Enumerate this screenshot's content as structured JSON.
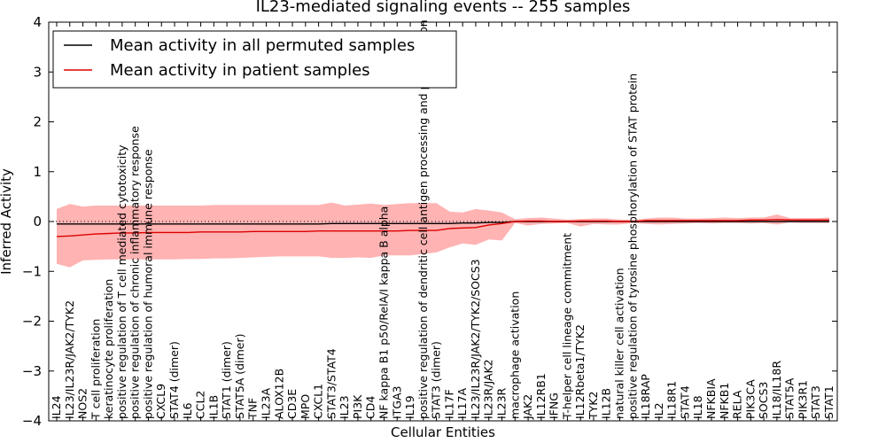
{
  "chart_data": {
    "type": "line",
    "title": "IL23-mediated signaling events -- 255 samples",
    "xlabel": "Cellular Entities",
    "ylabel": "Inferred Activity",
    "ylim": [
      -4,
      4
    ],
    "yticks": [
      -4,
      -3,
      -2,
      -1,
      0,
      1,
      2,
      3,
      4
    ],
    "grid": false,
    "legend_position": "top-left",
    "colors": {
      "permuted_line": "#000000",
      "patient_line": "#dd0000",
      "band_fill": "#ff9999"
    },
    "categories": [
      "IL24",
      "IL23/IL23R/JAK2/TYK2",
      "NOS2",
      "T cell proliferation",
      "keratinocyte proliferation",
      "positive regulation of T cell mediated cytotoxicity",
      "positive regulation of chronic inflammatory response",
      "positive regulation of humoral immune response",
      "CXCL9",
      "STAT4 (dimer)",
      "IL6",
      "CCL2",
      "IL1B",
      "STAT1 (dimer)",
      "STAT5A (dimer)",
      "TNF",
      "IL23A",
      "ALOX12B",
      "CD3E",
      "MPO",
      "CXCL1",
      "STAT3/STAT4",
      "IL23",
      "PI3K",
      "CD4",
      "NF kappa B1 p50/RelA/I kappa B alpha",
      "ITGA3",
      "IL19",
      "positive regulation of dendritic cell antigen processing and presentation",
      "STAT3 (dimer)",
      "IL17F",
      "IL17A",
      "IL23/IL23R/JAK2/TYK2/SOCS3",
      "IL23R/JAK2",
      "IL23R",
      "macrophage activation",
      "JAK2",
      "IL12RB1",
      "IFNG",
      "T-helper cell lineage commitment",
      "IL12Rbeta1/TYK2",
      "TYK2",
      "IL12B",
      "natural killer cell activation",
      "positive regulation of tyrosine phosphorylation of STAT protein",
      "IL18RAP",
      "IL2",
      "IL18R1",
      "STAT4",
      "IL18",
      "NFKBIA",
      "NFKB1",
      "RELA",
      "PIK3CA",
      "SOCS3",
      "IL18/IL18R",
      "STAT5A",
      "PIK3R1",
      "STAT3",
      "STAT1"
    ],
    "series": [
      {
        "name": "Mean activity in all permuted samples",
        "values": [
          -0.05,
          -0.05,
          -0.05,
          -0.05,
          -0.05,
          -0.05,
          -0.05,
          -0.05,
          -0.05,
          -0.05,
          -0.05,
          -0.05,
          -0.05,
          -0.05,
          -0.05,
          -0.05,
          -0.05,
          -0.05,
          -0.05,
          -0.05,
          -0.05,
          -0.04,
          -0.04,
          -0.04,
          -0.04,
          -0.04,
          -0.04,
          -0.04,
          -0.04,
          -0.04,
          -0.04,
          -0.03,
          -0.03,
          -0.02,
          -0.02,
          0.0,
          0.0,
          0.0,
          0.0,
          0.0,
          0.0,
          0.0,
          0.0,
          0.0,
          0.0,
          0.0,
          0.0,
          0.0,
          0.0,
          0.0,
          0.0,
          0.0,
          0.0,
          0.0,
          0.0,
          0.0,
          0.0,
          0.0,
          0.0,
          0.0
        ]
      },
      {
        "name": "Mean activity in patient samples",
        "values": [
          -0.3,
          -0.29,
          -0.27,
          -0.25,
          -0.24,
          -0.23,
          -0.23,
          -0.22,
          -0.22,
          -0.22,
          -0.22,
          -0.21,
          -0.21,
          -0.21,
          -0.21,
          -0.2,
          -0.2,
          -0.2,
          -0.2,
          -0.2,
          -0.19,
          -0.19,
          -0.19,
          -0.19,
          -0.19,
          -0.19,
          -0.19,
          -0.18,
          -0.18,
          -0.18,
          -0.14,
          -0.13,
          -0.12,
          -0.07,
          -0.04,
          0.0,
          0.01,
          0.01,
          0.0,
          0.0,
          0.01,
          0.01,
          0.01,
          0.0,
          0.0,
          0.02,
          0.02,
          0.02,
          0.02,
          0.02,
          0.02,
          0.02,
          0.02,
          0.03,
          0.03,
          0.04,
          0.03,
          0.03,
          0.03,
          0.03
        ]
      }
    ],
    "band": {
      "name": "patient samples spread",
      "upper": [
        0.25,
        0.35,
        0.3,
        0.32,
        0.32,
        0.32,
        0.32,
        0.32,
        0.32,
        0.32,
        0.32,
        0.32,
        0.33,
        0.33,
        0.33,
        0.33,
        0.33,
        0.33,
        0.33,
        0.33,
        0.33,
        0.38,
        0.32,
        0.34,
        0.36,
        0.33,
        0.35,
        0.37,
        0.37,
        0.37,
        0.2,
        0.18,
        0.25,
        0.22,
        0.18,
        0.05,
        0.07,
        0.08,
        0.06,
        0.04,
        0.05,
        0.06,
        0.06,
        0.04,
        0.03,
        0.06,
        0.08,
        0.08,
        0.06,
        0.06,
        0.07,
        0.08,
        0.07,
        0.08,
        0.08,
        0.14,
        0.07,
        0.07,
        0.07,
        0.08
      ],
      "lower": [
        -0.85,
        -0.92,
        -0.78,
        -0.77,
        -0.76,
        -0.76,
        -0.76,
        -0.76,
        -0.76,
        -0.76,
        -0.75,
        -0.75,
        -0.74,
        -0.74,
        -0.73,
        -0.72,
        -0.71,
        -0.7,
        -0.7,
        -0.7,
        -0.7,
        -0.73,
        -0.73,
        -0.72,
        -0.73,
        -0.68,
        -0.68,
        -0.68,
        -0.65,
        -0.62,
        -0.52,
        -0.44,
        -0.47,
        -0.36,
        -0.38,
        -0.03,
        -0.08,
        -0.05,
        -0.04,
        -0.03,
        -0.1,
        -0.05,
        -0.06,
        -0.06,
        -0.03,
        -0.05,
        -0.06,
        -0.05,
        -0.04,
        -0.03,
        -0.04,
        -0.03,
        -0.03,
        -0.04,
        -0.03,
        -0.06,
        -0.02,
        -0.03,
        -0.03,
        -0.03
      ]
    }
  }
}
